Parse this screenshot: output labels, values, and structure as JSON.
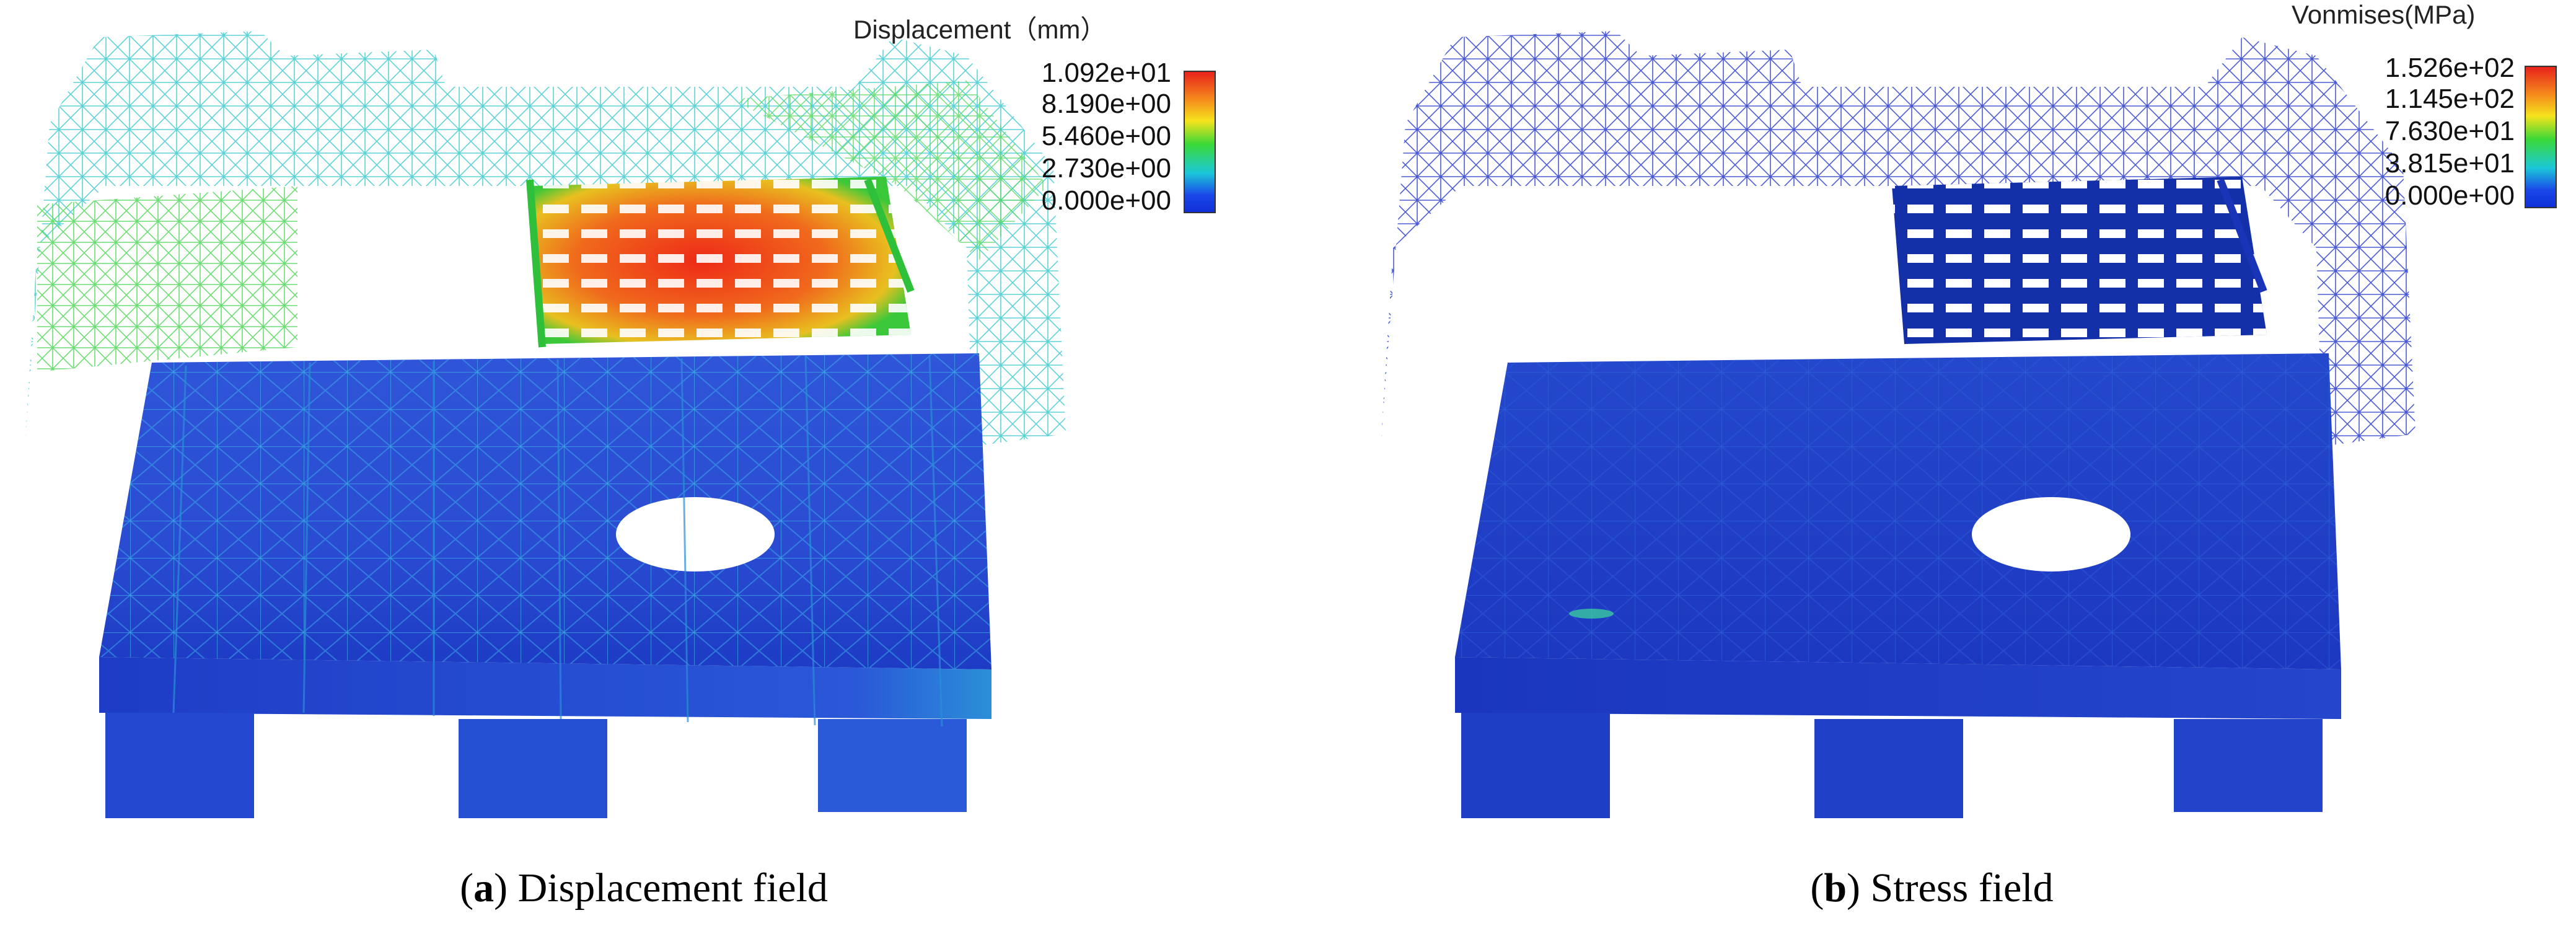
{
  "panels": [
    {
      "id": "a",
      "legend": {
        "title": "Displacement（mm）",
        "ticks": [
          "1.092e+01",
          "8.190e+00",
          "5.460e+00",
          "2.730e+00",
          "0.000e+00"
        ]
      },
      "caption": {
        "letter": "a",
        "text": "Displacement field"
      },
      "colors": {
        "deck": "#2d4fd6",
        "lattice": "#2ec9c0",
        "hot": "#e8331c",
        "warm": "#f0b020",
        "green": "#3ac83a"
      }
    },
    {
      "id": "b",
      "legend": {
        "title": "Vonmises(MPa)",
        "ticks": [
          "1.526e+02",
          "1.145e+02",
          "7.630e+01",
          "3.815e+01",
          "0.000e+00"
        ]
      },
      "caption": {
        "letter": "b",
        "text": "Stress field"
      },
      "colors": {
        "deck": "#2240c8",
        "lattice": "#2436c8"
      }
    }
  ]
}
